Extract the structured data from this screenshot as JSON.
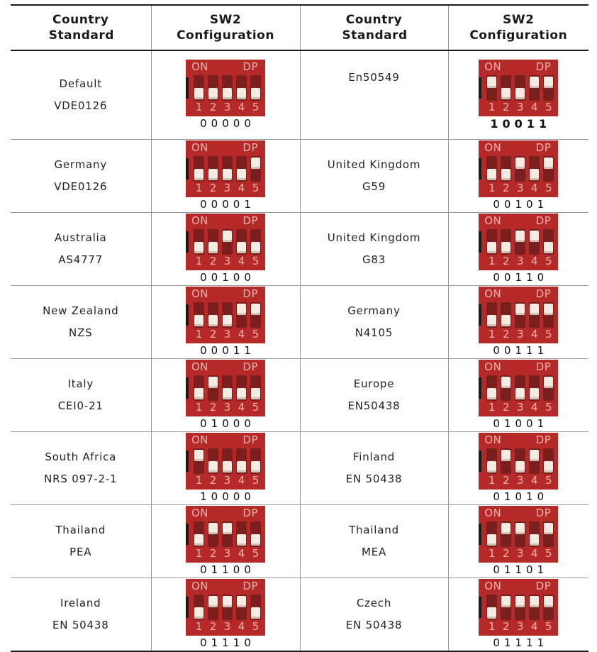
{
  "headers": {
    "country": "Country Standard",
    "config": "SW2 Configuration"
  },
  "switch_labels": {
    "on": "ON",
    "dp": "DP",
    "numbers": [
      "1",
      "2",
      "3",
      "4",
      "5"
    ]
  },
  "colors": {
    "switch_body": "#b52a28",
    "knob": "#f4ece2",
    "label": "#f1b3ad"
  },
  "rows": [
    {
      "left": {
        "line1": "Default",
        "line2": "VDE0126",
        "code": "00000"
      },
      "right": {
        "line1": "En50549",
        "line2": "",
        "code": "10011"
      }
    },
    {
      "left": {
        "line1": "Germany",
        "line2": "VDE0126",
        "code": "00001"
      },
      "right": {
        "line1": "United Kingdom",
        "line2": "G59",
        "code": "00101"
      }
    },
    {
      "left": {
        "line1": "Australia",
        "line2": "AS4777",
        "code": "00100"
      },
      "right": {
        "line1": "United Kingdom",
        "line2": "G83",
        "code": "00110"
      }
    },
    {
      "left": {
        "line1": "New Zealand",
        "line2": "NZS",
        "code": "00011"
      },
      "right": {
        "line1": "Germany",
        "line2": "N4105",
        "code": "00111"
      }
    },
    {
      "left": {
        "line1": "Italy",
        "line2": "CEI0-21",
        "code": "01000"
      },
      "right": {
        "line1": "Europe",
        "line2": "EN50438",
        "code": "01001"
      }
    },
    {
      "left": {
        "line1": "South Africa",
        "line2": "NRS 097-2-1",
        "code": "10000"
      },
      "right": {
        "line1": "Finland",
        "line2": "EN 50438",
        "code": "01010"
      }
    },
    {
      "left": {
        "line1": "Thailand",
        "line2": "PEA",
        "code": "01100"
      },
      "right": {
        "line1": "Thailand",
        "line2": "MEA",
        "code": "01101"
      }
    },
    {
      "left": {
        "line1": "Ireland",
        "line2": "EN 50438",
        "code": "01110"
      },
      "right": {
        "line1": "Czech",
        "line2": "EN 50438",
        "code": "01111"
      }
    }
  ]
}
